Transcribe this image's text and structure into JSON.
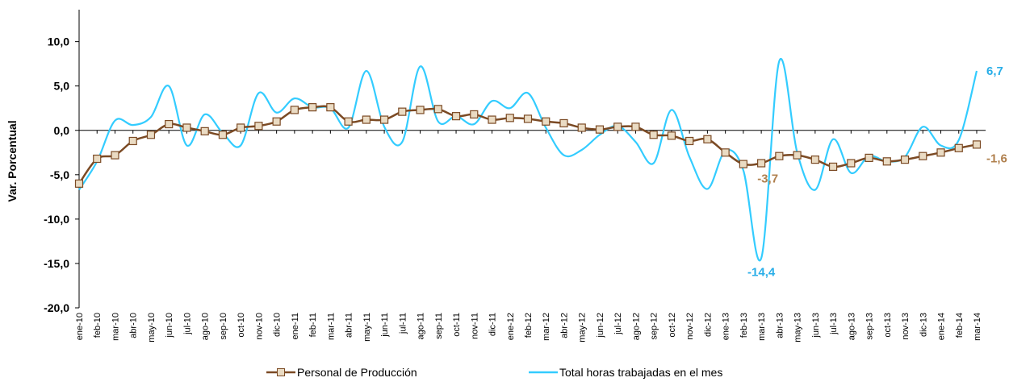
{
  "chart_data": {
    "type": "line",
    "y_label": "Var. Porcentual",
    "categories": [
      "ene-10",
      "feb-10",
      "mar-10",
      "abr-10",
      "may-10",
      "jun-10",
      "jul-10",
      "ago-10",
      "sep-10",
      "oct-10",
      "nov-10",
      "dic-10",
      "ene-11",
      "feb-11",
      "mar-11",
      "abr-11",
      "may-11",
      "jun-11",
      "jul-11",
      "ago-11",
      "sep-11",
      "oct-11",
      "nov-11",
      "dic-11",
      "ene-12",
      "feb-12",
      "mar-12",
      "abr-12",
      "may-12",
      "jun-12",
      "jul-12",
      "ago-12",
      "sep-12",
      "oct-12",
      "nov-12",
      "dic-12",
      "ene-13",
      "feb-13",
      "mar-13",
      "abr-13",
      "may-13",
      "jun-13",
      "jul-13",
      "ago-13",
      "sep-13",
      "oct-13",
      "nov-13",
      "dic-13",
      "ene-14",
      "feb-14",
      "mar-14"
    ],
    "series": [
      {
        "name": "Personal de Producción",
        "color": "#7b4a24",
        "marker_fill": "#eadbc3",
        "values": [
          -6.0,
          -3.2,
          -2.8,
          -1.2,
          -0.5,
          0.7,
          0.3,
          -0.1,
          -0.5,
          0.3,
          0.5,
          1.0,
          2.3,
          2.6,
          2.6,
          1.0,
          1.2,
          1.2,
          2.1,
          2.3,
          2.4,
          1.6,
          1.8,
          1.2,
          1.4,
          1.3,
          1.0,
          0.8,
          0.3,
          0.1,
          0.4,
          0.4,
          -0.5,
          -0.6,
          -1.2,
          -1.0,
          -2.5,
          -3.8,
          -3.7,
          -2.9,
          -2.8,
          -3.3,
          -4.1,
          -3.7,
          -3.1,
          -3.5,
          -3.3,
          -2.9,
          -2.5,
          -2.0,
          -1.6
        ],
        "value_labels": [
          null,
          null,
          null,
          null,
          null,
          null,
          null,
          null,
          null,
          null,
          null,
          null,
          null,
          null,
          null,
          null,
          null,
          null,
          null,
          null,
          null,
          null,
          null,
          null,
          null,
          null,
          null,
          null,
          null,
          null,
          null,
          null,
          null,
          null,
          null,
          null,
          null,
          null,
          "-3,7",
          null,
          null,
          null,
          null,
          null,
          null,
          null,
          null,
          null,
          null,
          null,
          "-1,6"
        ],
        "label_color": "#b0804e"
      },
      {
        "name": "Total horas trabajadas en el mes",
        "color": "#33ccff",
        "values": [
          -6.7,
          -3.5,
          1.1,
          0.6,
          1.5,
          5.0,
          -1.7,
          1.8,
          -0.3,
          -1.7,
          4.2,
          2.0,
          3.6,
          2.6,
          2.5,
          0.3,
          6.7,
          0.4,
          -1.3,
          7.2,
          1.0,
          1.6,
          0.7,
          3.3,
          2.5,
          4.2,
          0.3,
          -2.8,
          -2.2,
          -0.5,
          0.5,
          -1.3,
          -3.7,
          2.3,
          -3.0,
          -6.6,
          -2.3,
          -4.5,
          -14.4,
          7.8,
          -2.5,
          -6.7,
          -1.0,
          -4.8,
          -2.9,
          -3.5,
          -3.0,
          0.4,
          -1.7,
          -1.1,
          6.7
        ],
        "value_labels": [
          null,
          null,
          null,
          null,
          null,
          null,
          null,
          null,
          null,
          null,
          null,
          null,
          null,
          null,
          null,
          null,
          null,
          null,
          null,
          null,
          null,
          null,
          null,
          null,
          null,
          null,
          null,
          null,
          null,
          null,
          null,
          null,
          null,
          null,
          null,
          null,
          null,
          null,
          "-14,4",
          null,
          null,
          null,
          null,
          null,
          null,
          null,
          null,
          null,
          null,
          null,
          "6,7"
        ],
        "label_color": "#29aee8"
      }
    ],
    "ylim": [
      -20,
      13.6
    ],
    "yticks": [
      {
        "value": -20,
        "label": "-20,0"
      },
      {
        "value": -15,
        "label": "-15,0"
      },
      {
        "value": -10,
        "label": "-10,0"
      },
      {
        "value": -5,
        "label": "-5,0"
      },
      {
        "value": 0,
        "label": "0,0"
      },
      {
        "value": 5,
        "label": "5,0"
      },
      {
        "value": 10,
        "label": "10,0"
      }
    ],
    "legend": "bottom"
  }
}
